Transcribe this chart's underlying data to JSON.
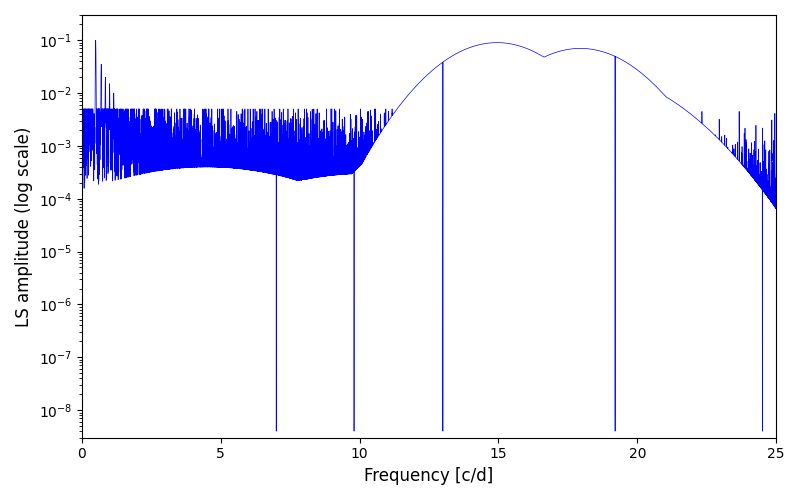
{
  "title": "",
  "xlabel": "Frequency [c/d]",
  "ylabel": "LS amplitude (log scale)",
  "xlim": [
    0,
    25
  ],
  "ylim": [
    3e-09,
    0.3
  ],
  "line_color": "#0000ff",
  "line_width": 0.5,
  "figsize": [
    8.0,
    5.0
  ],
  "dpi": 100,
  "freq_min": 0.0,
  "freq_max": 25.0,
  "n_points": 8000,
  "seed": 7,
  "background_color": "#ffffff"
}
